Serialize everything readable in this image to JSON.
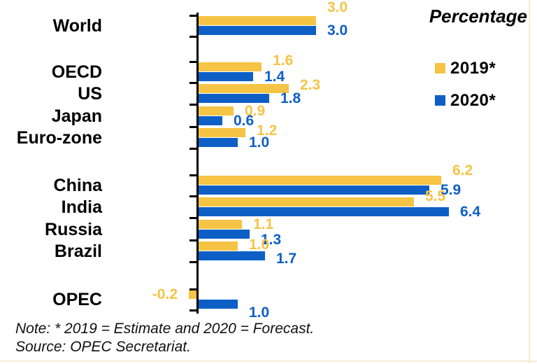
{
  "note": "Note: * 2019 = Estimate and 2020 = Forecast.",
  "source": "Source: OPEC Secretariat.",
  "chart_data": {
    "type": "bar",
    "orientation": "horizontal",
    "title": "Percentage",
    "xlabel": "",
    "ylabel": "",
    "xlim": [
      -0.5,
      7
    ],
    "grid": false,
    "legend_position": "top-right",
    "value_labels": true,
    "categories": [
      "World",
      "OECD",
      "US",
      "Japan",
      "Euro-zone",
      "China",
      "India",
      "Russia",
      "Brazil",
      "OPEC"
    ],
    "groups": [
      [
        "World"
      ],
      [
        "OECD",
        "US",
        "Japan",
        "Euro-zone"
      ],
      [
        "China",
        "India",
        "Russia",
        "Brazil"
      ],
      [
        "OPEC"
      ]
    ],
    "series": [
      {
        "name": "2019*",
        "color": "#F5C445",
        "values": [
          3.0,
          1.6,
          2.3,
          0.9,
          1.2,
          6.2,
          5.5,
          1.1,
          1.0,
          -0.2
        ]
      },
      {
        "name": "2020*",
        "color": "#0D5FC6",
        "values": [
          3.0,
          1.4,
          1.8,
          0.6,
          1.0,
          5.9,
          6.4,
          1.3,
          1.7,
          1.0
        ]
      }
    ]
  }
}
